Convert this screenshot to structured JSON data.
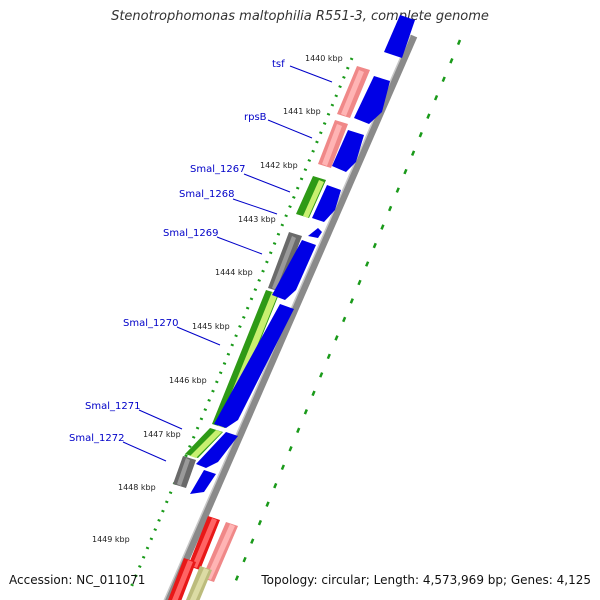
{
  "title": "Stenotrophomonas maltophilia R551-3, complete genome",
  "footer": {
    "accession": "Accession: NC_011071",
    "topology": "Topology: circular; Length: 4,573,969 bp; Genes: 4,125"
  },
  "ticks": [
    "1440 kbp",
    "1441 kbp",
    "1442 kbp",
    "1443 kbp",
    "1444 kbp",
    "1445 kbp",
    "1446 kbp",
    "1447 kbp",
    "1448 kbp",
    "1449 kbp"
  ],
  "genes": [
    "tsf",
    "rpsB",
    "Smal_1267",
    "Smal_1268",
    "Smal_1269",
    "Smal_1270",
    "Smal_1271",
    "Smal_1272"
  ],
  "colors": {
    "backbone": "#8a8a8a",
    "cds_forward": "#0000e6",
    "trna_salmon": "#f08888",
    "gene_green": "#2e9a16",
    "gene_lightgreen": "#c8f070",
    "pseudogene_gray": "#6a6a6a",
    "rrna_red": "#e81818",
    "misc_olive": "#bcbc7c",
    "gc_skew_green": "#1a9a1a",
    "label_blue": "#0000c8"
  }
}
